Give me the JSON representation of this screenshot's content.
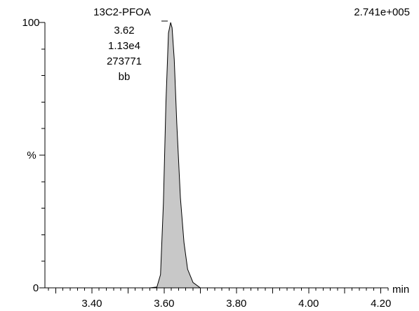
{
  "chart_data": {
    "type": "area",
    "title": "",
    "xlabel": "min",
    "ylabel": "%",
    "y_max_intensity": "2.741e+005",
    "xlim": [
      3.27,
      4.22
    ],
    "ylim": [
      0,
      100
    ],
    "x_tick_labels": [
      "3.40",
      "3.60",
      "3.80",
      "4.00",
      "4.20"
    ],
    "y_tick_labels": {
      "top": "100",
      "bottom": "0"
    },
    "series": [
      {
        "x": [
          3.27,
          3.56,
          3.58,
          3.59,
          3.598,
          3.605,
          3.612,
          3.618,
          3.622,
          3.628,
          3.635,
          3.645,
          3.655,
          3.665,
          3.68,
          3.7,
          4.22
        ],
        "y": [
          0,
          0,
          0.3,
          5,
          32,
          70,
          96,
          100,
          98,
          86,
          62,
          34,
          17,
          7,
          2,
          0,
          0
        ]
      }
    ],
    "annotation": {
      "peak_name": "13C2-PFOA",
      "retention_time": "3.62",
      "height": "1.13e4",
      "area": "273771",
      "baseline_type": "bb",
      "peak_x": 3.62
    }
  }
}
